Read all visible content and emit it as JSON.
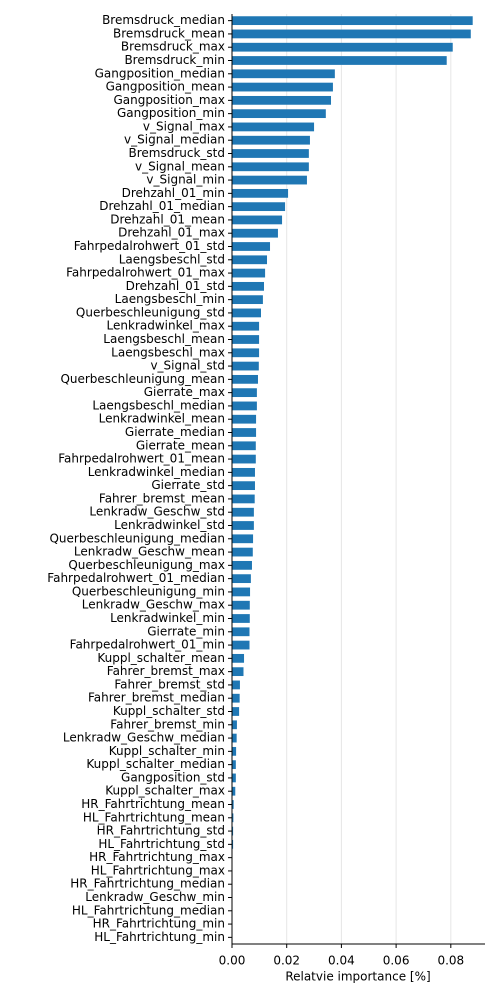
{
  "chart_data": {
    "type": "barh",
    "xlabel": "Relatvie importance [%]",
    "categories": [
      "Bremsdruck_median",
      "Bremsdruck_mean",
      "Bremsdruck_max",
      "Bremsdruck_min",
      "Gangposition_median",
      "Gangposition_mean",
      "Gangposition_max",
      "Gangposition_min",
      "v_Signal_max",
      "v_Signal_median",
      "Bremsdruck_std",
      "v_Signal_mean",
      "v_Signal_min",
      "Drehzahl_01_min",
      "Drehzahl_01_median",
      "Drehzahl_01_mean",
      "Drehzahl_01_max",
      "Fahrpedalrohwert_01_std",
      "Laengsbeschl_std",
      "Fahrpedalrohwert_01_max",
      "Drehzahl_01_std",
      "Laengsbeschl_min",
      "Querbeschleunigung_std",
      "Lenkradwinkel_max",
      "Laengsbeschl_mean",
      "Laengsbeschl_max",
      "v_Signal_std",
      "Querbeschleunigung_mean",
      "Gierrate_max",
      "Laengsbeschl_median",
      "Lenkradwinkel_mean",
      "Gierrate_median",
      "Gierrate_mean",
      "Fahrpedalrohwert_01_mean",
      "Lenkradwinkel_median",
      "Gierrate_std",
      "Fahrer_bremst_mean",
      "Lenkradw_Geschw_std",
      "Lenkradwinkel_std",
      "Querbeschleunigung_median",
      "Lenkradw_Geschw_mean",
      "Querbeschleunigung_max",
      "Fahrpedalrohwert_01_median",
      "Querbeschleunigung_min",
      "Lenkradw_Geschw_max",
      "Lenkradwinkel_min",
      "Gierrate_min",
      "Fahrpedalrohwert_01_min",
      "Kuppl_schalter_mean",
      "Fahrer_bremst_max",
      "Fahrer_bremst_std",
      "Fahrer_bremst_median",
      "Kuppl_schalter_std",
      "Fahrer_bremst_min",
      "Lenkradw_Geschw_median",
      "Kuppl_schalter_min",
      "Kuppl_schalter_median",
      "Gangposition_std",
      "Kuppl_schalter_max",
      "HR_Fahrtrichtung_mean",
      "HL_Fahrtrichtung_mean",
      "HR_Fahrtrichtung_std",
      "HL_Fahrtrichtung_std",
      "HR_Fahrtrichtung_max",
      "HL_Fahrtrichtung_max",
      "HR_Fahrtrichtung_median",
      "Lenkradw_Geschw_min",
      "HL_Fahrtrichtung_median",
      "HR_Fahrtrichtung_min",
      "HL_Fahrtrichtung_min"
    ],
    "values": [
      0.088,
      0.0873,
      0.0807,
      0.0785,
      0.0376,
      0.0369,
      0.0362,
      0.0343,
      0.03,
      0.0285,
      0.0281,
      0.0281,
      0.0274,
      0.0205,
      0.0194,
      0.0183,
      0.0168,
      0.0139,
      0.0128,
      0.0121,
      0.0117,
      0.0113,
      0.0106,
      0.0099,
      0.0099,
      0.0099,
      0.0098,
      0.0095,
      0.0091,
      0.0091,
      0.0088,
      0.0088,
      0.0087,
      0.0087,
      0.0084,
      0.0084,
      0.0083,
      0.008,
      0.008,
      0.0077,
      0.0076,
      0.0073,
      0.0069,
      0.0066,
      0.0065,
      0.0065,
      0.0064,
      0.0064,
      0.0044,
      0.0042,
      0.0029,
      0.0028,
      0.0026,
      0.0018,
      0.0017,
      0.0015,
      0.0014,
      0.0014,
      0.0012,
      0.0006,
      0.0005,
      0.0004,
      0.0004,
      0.0001,
      0.0001,
      0,
      0,
      0,
      0,
      0
    ],
    "color": "#1f77b4",
    "xlim": [
      0,
      0.0925
    ],
    "xticks": [
      {
        "value": 0,
        "label": "0.00"
      },
      {
        "value": 0.02,
        "label": "0.02"
      },
      {
        "value": 0.04,
        "label": "0.04"
      },
      {
        "value": 0.06,
        "label": "0.06"
      },
      {
        "value": 0.08,
        "label": "0.08"
      }
    ],
    "grid": true
  }
}
